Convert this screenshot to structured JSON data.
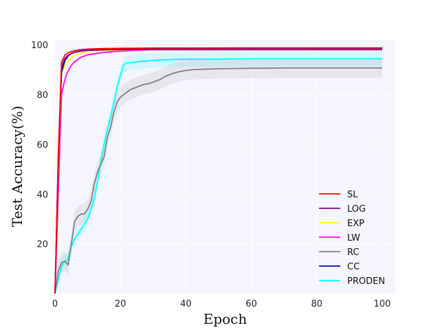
{
  "chart_data": {
    "type": "line",
    "title": "",
    "xlabel": "Epoch",
    "ylabel": "Test Accuracy(%)",
    "xlim": [
      0,
      104
    ],
    "ylim": [
      0,
      102
    ],
    "xticks": [
      0,
      20,
      40,
      60,
      80,
      100
    ],
    "yticks": [
      20,
      40,
      60,
      80,
      100
    ],
    "grid": true,
    "legend_position": "bottom-right",
    "colors": {
      "plot_background": "#f5f5fd",
      "grid": "#ffffff"
    },
    "series": [
      {
        "name": "SL",
        "color": "#ff0000",
        "x": [
          0,
          1,
          2,
          3,
          4,
          5,
          6,
          8,
          10,
          15,
          20,
          30,
          40,
          60,
          80,
          100
        ],
        "values": [
          0,
          55,
          93,
          95.8,
          96.8,
          97.3,
          97.7,
          98.1,
          98.3,
          98.5,
          98.6,
          98.7,
          98.7,
          98.8,
          98.8,
          98.8
        ],
        "band": 0
      },
      {
        "name": "LOG",
        "color": "#800080",
        "x": [
          0,
          1,
          2,
          3,
          4,
          5,
          6,
          8,
          10,
          15,
          20,
          30,
          40,
          60,
          80,
          100
        ],
        "values": [
          0,
          50,
          91,
          94.5,
          95.8,
          96.5,
          97,
          97.5,
          97.8,
          98,
          98.1,
          98.2,
          98.2,
          98.2,
          98.2,
          98.2
        ],
        "band": 0
      },
      {
        "name": "EXP",
        "color": "#ffff00",
        "x": [
          0,
          1,
          2,
          3,
          4,
          5,
          6,
          8,
          10,
          15,
          20,
          30,
          40,
          60,
          80,
          100
        ],
        "values": [
          0,
          48,
          88,
          91.5,
          93.5,
          94.8,
          95.7,
          96.8,
          97.3,
          97.8,
          98,
          98.1,
          98.1,
          98.1,
          98.1,
          98.1
        ],
        "band": 0
      },
      {
        "name": "LW",
        "color": "#ff00ff",
        "x": [
          0,
          1,
          2,
          3,
          4,
          5,
          6,
          8,
          10,
          15,
          20,
          25,
          30,
          40,
          60,
          80,
          100
        ],
        "values": [
          0,
          40,
          80,
          86,
          89.5,
          91.8,
          93.3,
          95,
          96,
          97,
          97.5,
          97.8,
          98,
          98,
          98,
          98,
          98
        ],
        "band": 0
      },
      {
        "name": "RC",
        "color": "#808080",
        "x": [
          0,
          1,
          2,
          3,
          4,
          5,
          6,
          7,
          8,
          9,
          10,
          11,
          12,
          13,
          14,
          15,
          16,
          17,
          18,
          19,
          20,
          21,
          22,
          23,
          24,
          25,
          26,
          27,
          28,
          29,
          30,
          32,
          34,
          36,
          38,
          40,
          42,
          45,
          50,
          55,
          60,
          65,
          70,
          75,
          80,
          85,
          90,
          95,
          100
        ],
        "values": [
          0,
          9,
          12.5,
          13,
          11.5,
          20,
          29,
          31,
          32,
          32,
          34,
          37,
          44,
          49,
          52,
          55,
          63,
          67,
          73,
          77,
          79,
          80,
          81,
          82,
          82.5,
          83,
          83.5,
          84,
          84.3,
          84.5,
          85,
          86,
          87.5,
          88.5,
          89.2,
          89.7,
          90,
          90.2,
          90.4,
          90.5,
          90.6,
          90.6,
          90.7,
          90.7,
          90.7,
          90.7,
          90.7,
          90.7,
          90.7
        ],
        "band": 4
      },
      {
        "name": "CC",
        "color": "#0000cd",
        "x": [
          0,
          1,
          2,
          3,
          4,
          5,
          6,
          8,
          10,
          15,
          20,
          30,
          40,
          60,
          80,
          100
        ],
        "values": [
          0,
          55,
          89,
          93.5,
          95.5,
          96.5,
          97,
          97.6,
          97.9,
          98.1,
          98.2,
          98.2,
          98.2,
          98.2,
          98.2,
          98.2
        ],
        "band": 0
      },
      {
        "name": "PRODEN",
        "color": "#00ffff",
        "x": [
          0,
          1,
          2,
          3,
          4,
          5,
          6,
          7,
          8,
          9,
          10,
          11,
          12,
          13,
          14,
          15,
          16,
          17,
          18,
          19,
          20,
          21,
          22,
          24,
          26,
          28,
          30,
          35,
          40,
          50,
          60,
          70,
          80,
          90,
          100
        ],
        "values": [
          0,
          6,
          11,
          13,
          14,
          19,
          22,
          24,
          26,
          28,
          30,
          34,
          38,
          45,
          53,
          60,
          66,
          71,
          77,
          83,
          88,
          92,
          92.7,
          93,
          93.3,
          93.5,
          93.8,
          94.1,
          94.2,
          94.3,
          94.4,
          94.4,
          94.4,
          94.4,
          94.4
        ],
        "band": 3
      }
    ]
  }
}
